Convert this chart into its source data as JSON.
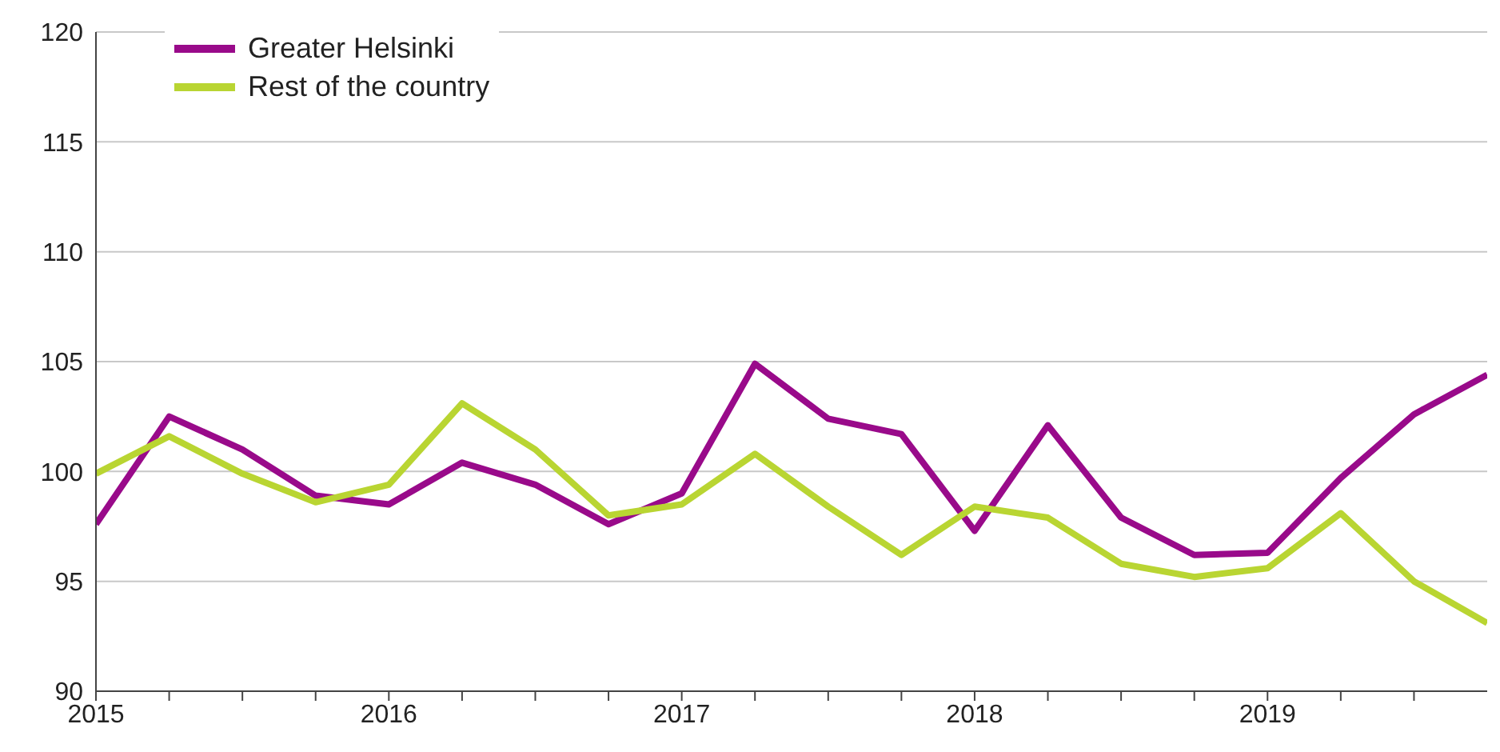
{
  "chart_data": {
    "type": "line",
    "x": [
      2015,
      2015.25,
      2015.5,
      2015.75,
      2016,
      2016.25,
      2016.5,
      2016.75,
      2017,
      2017.25,
      2017.5,
      2017.75,
      2018,
      2018.25,
      2018.5,
      2018.75,
      2019,
      2019.25,
      2019.5,
      2019.75
    ],
    "series": [
      {
        "name": "Greater Helsinki",
        "color": "#990a8a",
        "values": [
          97.6,
          102.5,
          101.0,
          98.9,
          98.5,
          100.4,
          99.4,
          97.6,
          99.0,
          104.9,
          102.4,
          101.7,
          97.3,
          102.1,
          97.9,
          96.2,
          96.3,
          99.7,
          102.6,
          104.4
        ]
      },
      {
        "name": "Rest of the country",
        "color": "#b9d532",
        "values": [
          99.9,
          101.6,
          99.9,
          98.6,
          99.4,
          103.1,
          101.0,
          98.0,
          98.5,
          100.8,
          98.4,
          96.2,
          98.4,
          97.9,
          95.8,
          95.2,
          95.6,
          98.1,
          95.0,
          93.1
        ]
      }
    ],
    "xlim": [
      2015,
      2019.75
    ],
    "xticks": [
      2015,
      {
        "value": 2015.25,
        "label": null
      },
      {
        "value": 2015.5,
        "label": null
      },
      {
        "value": 2015.75,
        "label": null
      },
      2016,
      {
        "value": 2016.25,
        "label": null
      },
      {
        "value": 2016.5,
        "label": null
      },
      {
        "value": 2016.75,
        "label": null
      },
      2017,
      {
        "value": 2017.25,
        "label": null
      },
      {
        "value": 2017.5,
        "label": null
      },
      {
        "value": 2017.75,
        "label": null
      },
      2018,
      {
        "value": 2018.25,
        "label": null
      },
      {
        "value": 2018.5,
        "label": null
      },
      {
        "value": 2018.75,
        "label": null
      },
      2019,
      {
        "value": 2019.25,
        "label": null
      },
      {
        "value": 2019.5,
        "label": null
      }
    ],
    "ylim": [
      90,
      120
    ],
    "yticks": [
      90,
      95,
      100,
      105,
      110,
      115,
      120
    ],
    "grid": "y",
    "legend": "top left",
    "marker": "none",
    "line_style": "solid"
  }
}
